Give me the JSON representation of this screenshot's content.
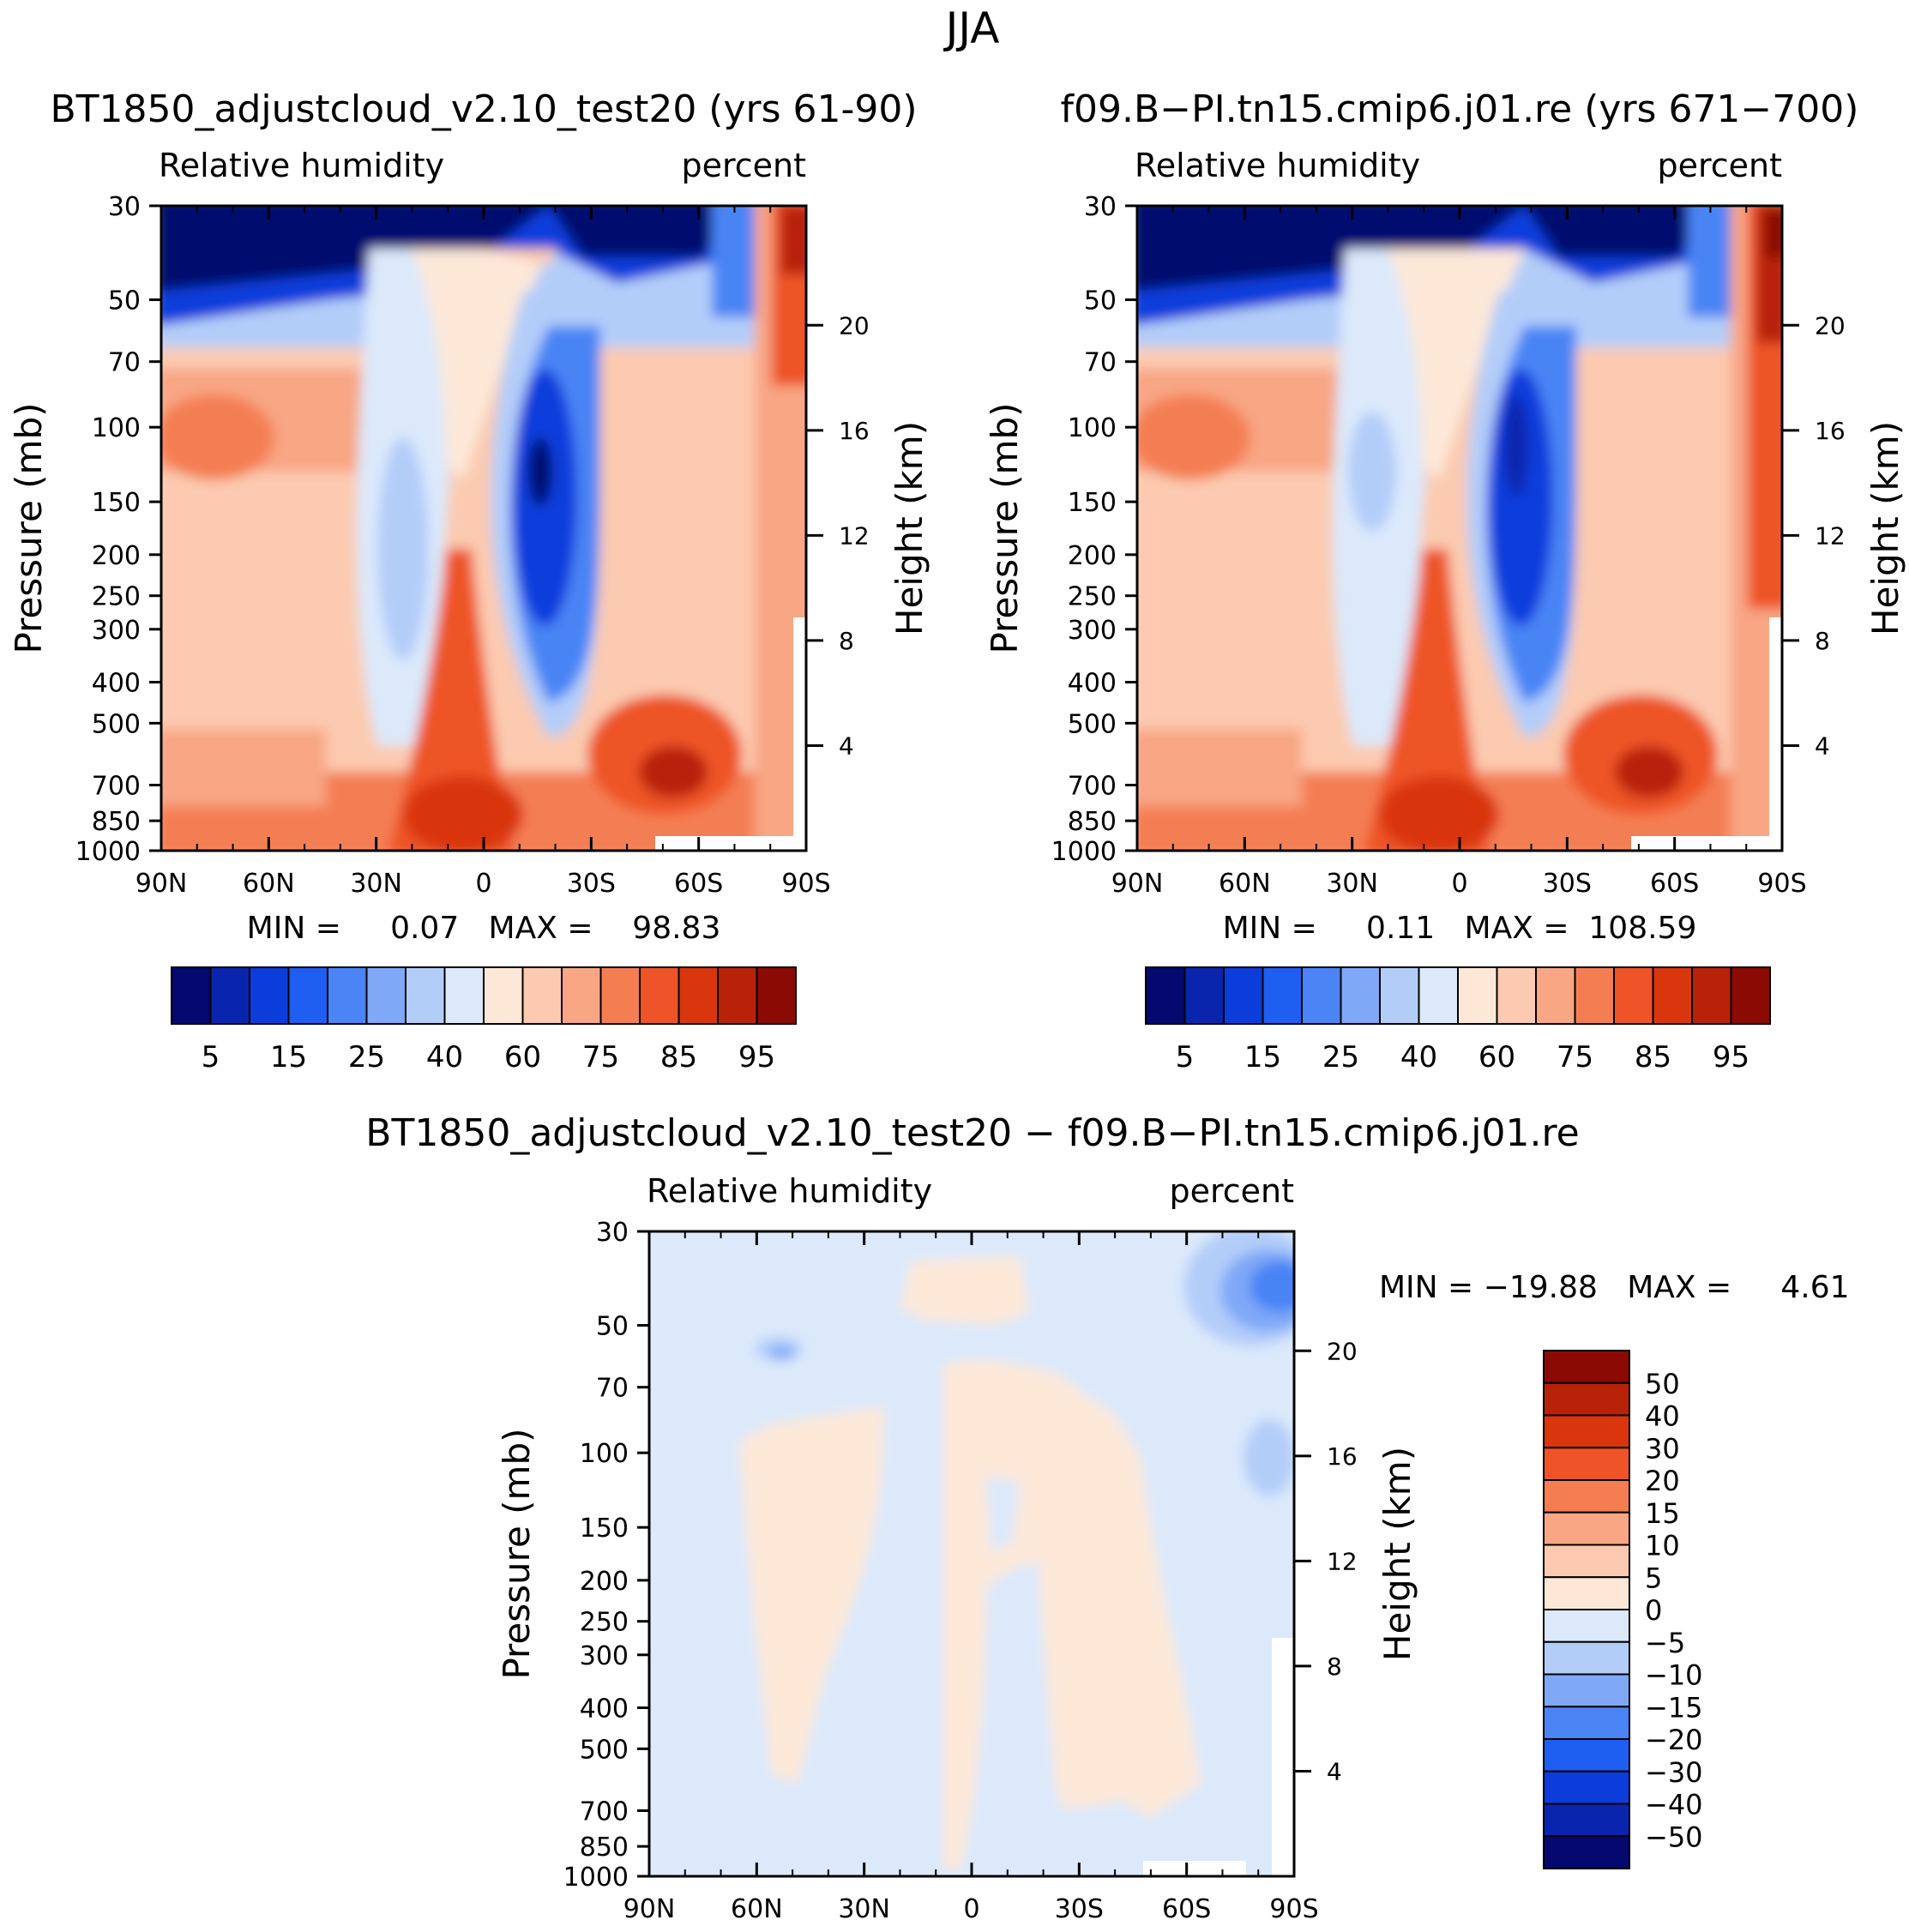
{
  "chart_data": [
    {
      "type": "heatmap",
      "id": "left",
      "title": "BT1850_adjustcloud_v2.10_test20 (yrs 61-90)",
      "variable": "Relative humidity",
      "units": "percent",
      "ylabel": "Pressure (mb)",
      "y2label": "Height (km)",
      "x_ticks": [
        "90N",
        "60N",
        "30N",
        "0",
        "30S",
        "60S",
        "90S"
      ],
      "y_ticks": [
        30,
        50,
        70,
        100,
        150,
        200,
        250,
        300,
        400,
        500,
        700,
        850,
        1000
      ],
      "y2_ticks": [
        20,
        16,
        12,
        8,
        4
      ],
      "stats_label": "MIN =     0.07   MAX =    98.83",
      "min": 0.07,
      "max": 98.83,
      "colorbar_labels": [
        "5",
        "15",
        "25",
        "40",
        "60",
        "75",
        "85",
        "95"
      ]
    },
    {
      "type": "heatmap",
      "id": "right",
      "title": "f09.B−PI.tn15.cmip6.j01.re (yrs 671−700)",
      "variable": "Relative humidity",
      "units": "percent",
      "ylabel": "Pressure (mb)",
      "y2label": "Height (km)",
      "x_ticks": [
        "90N",
        "60N",
        "30N",
        "0",
        "30S",
        "60S",
        "90S"
      ],
      "y_ticks": [
        30,
        50,
        70,
        100,
        150,
        200,
        250,
        300,
        400,
        500,
        700,
        850,
        1000
      ],
      "y2_ticks": [
        20,
        16,
        12,
        8,
        4
      ],
      "stats_label": "MIN =     0.11   MAX =  108.59",
      "min": 0.11,
      "max": 108.59,
      "colorbar_labels": [
        "5",
        "15",
        "25",
        "40",
        "60",
        "75",
        "85",
        "95"
      ]
    },
    {
      "type": "heatmap",
      "id": "diff",
      "title": "BT1850_adjustcloud_v2.10_test20 − f09.B−PI.tn15.cmip6.j01.re",
      "variable": "Relative humidity",
      "units": "percent",
      "ylabel": "Pressure (mb)",
      "y2label": "Height (km)",
      "x_ticks": [
        "90N",
        "60N",
        "30N",
        "0",
        "30S",
        "60S",
        "90S"
      ],
      "y_ticks": [
        30,
        50,
        70,
        100,
        150,
        200,
        250,
        300,
        400,
        500,
        700,
        850,
        1000
      ],
      "y2_ticks": [
        20,
        16,
        12,
        8,
        4
      ],
      "stats_label": "MIN = −19.88   MAX =     4.61",
      "min": -19.88,
      "max": 4.61,
      "colorbar_labels": [
        "50",
        "40",
        "30",
        "20",
        "15",
        "10",
        "5",
        "0",
        "−5",
        "−10",
        "−15",
        "−20",
        "−30",
        "−40",
        "−50"
      ]
    }
  ],
  "figure_title": "JJA",
  "colors": {
    "rh_palette": [
      "#05086e",
      "#0a25ad",
      "#0c3ddb",
      "#1e5ff2",
      "#4a84f5",
      "#7fa8f7",
      "#b3cdf9",
      "#dbe9fb",
      "#fde8d8",
      "#fbcab0",
      "#f8a684",
      "#f47e52",
      "#ee5428",
      "#d9360e",
      "#b82209",
      "#8b0a04"
    ],
    "diff_palette": [
      "#8b0a04",
      "#b82209",
      "#d9360e",
      "#ee5428",
      "#f47e52",
      "#f8a684",
      "#fbcab0",
      "#fde8d8",
      "#dbe9fb",
      "#b3cdf9",
      "#7fa8f7",
      "#4a84f5",
      "#1e5ff2",
      "#0c3ddb",
      "#0a25ad",
      "#05086e"
    ]
  }
}
